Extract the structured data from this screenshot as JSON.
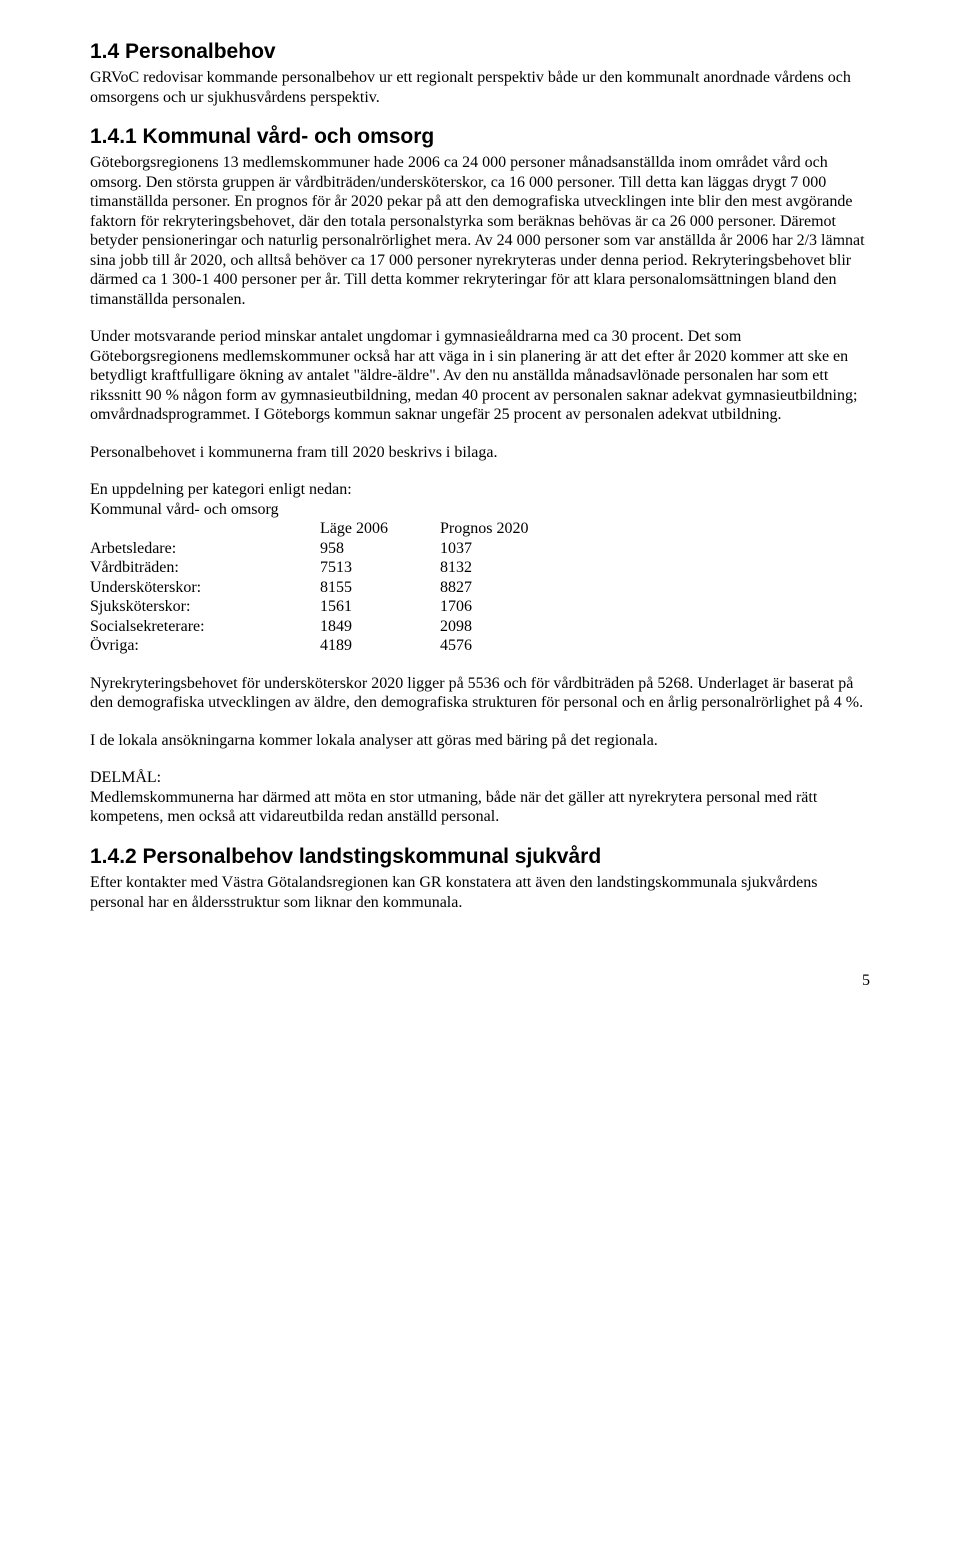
{
  "section": {
    "heading": "1.4 Personalbehov",
    "intro": "GRVoC redovisar kommande personalbehov ur ett regionalt perspektiv både ur den kommunalt anordnade vårdens och omsorgens och ur sjukhusvårdens perspektiv."
  },
  "sub1": {
    "heading": "1.4.1 Kommunal vård- och omsorg",
    "para1": "Göteborgsregionens 13 medlemskommuner hade 2006 ca 24 000 personer månadsanställda inom området vård och omsorg. Den största gruppen är vårdbiträden/undersköterskor, ca 16 000 personer. Till detta kan läggas drygt 7 000 timanställda personer. En prognos för år 2020 pekar på att den demografiska utvecklingen inte blir den mest avgörande faktorn för rekryteringsbehovet, där den totala personalstyrka som beräknas behövas är ca 26 000 personer. Däremot betyder pensioneringar och naturlig personalrörlighet mera. Av 24 000 personer som var anställda år 2006 har 2/3 lämnat sina jobb till år 2020, och alltså behöver ca 17 000 personer nyrekryteras under denna period. Rekryteringsbehovet blir därmed ca 1 300-1 400 personer per år. Till detta kommer rekryteringar för att klara personalomsättningen bland den timanställda personalen.",
    "para2": "Under motsvarande period minskar antalet ungdomar i gymnasieåldrarna med ca 30 procent. Det som Göteborgsregionens medlemskommuner också har att väga in i sin planering är att det efter år 2020 kommer att ske en betydligt kraftfulligare ökning av antalet \"äldre-äldre\". Av den nu anställda månadsavlönade personalen har som ett rikssnitt 90 % någon form av gymnasieutbildning, medan 40 procent av personalen saknar adekvat gymnasieutbildning; omvårdnadsprogrammet. I Göteborgs kommun saknar ungefär 25 procent av personalen adekvat utbildning.",
    "para3": "Personalbehovet i kommunerna fram till 2020 beskrivs i bilaga.",
    "table_intro_line1": "En uppdelning per kategori enligt nedan:",
    "table_intro_line2": "Kommunal vård- och omsorg",
    "table": {
      "col_headers": [
        "Läge 2006",
        "Prognos 2020"
      ],
      "rows": [
        {
          "label": "Arbetsledare:",
          "v1": "958",
          "v2": "1037"
        },
        {
          "label": "Vårdbiträden:",
          "v1": "7513",
          "v2": "8132"
        },
        {
          "label": "Undersköterskor:",
          "v1": "8155",
          "v2": "8827"
        },
        {
          "label": "Sjuksköterskor:",
          "v1": "1561",
          "v2": "1706"
        },
        {
          "label": "Socialsekreterare:",
          "v1": "1849",
          "v2": "2098"
        },
        {
          "label": "Övriga:",
          "v1": "4189",
          "v2": "4576"
        }
      ]
    },
    "para4": "Nyrekryteringsbehovet för undersköterskor 2020 ligger på 5536 och för vårdbiträden på 5268. Underlaget är baserat på den demografiska utvecklingen av äldre, den demografiska strukturen för personal och en årlig personalrörlighet på 4 %.",
    "para5": "I de lokala ansökningarna kommer lokala analyser att göras med bäring på det regionala.",
    "delmal_label": "DELMÅL:",
    "delmal_text": "Medlemskommunerna har därmed att möta en stor utmaning, både när det gäller att nyrekrytera personal med rätt kompetens, men också att vidareutbilda redan anställd personal."
  },
  "sub2": {
    "heading": "1.4.2 Personalbehov landstingskommunal sjukvård",
    "para": "Efter kontakter med Västra Götalandsregionen kan GR konstatera att även den landstingskommunala sjukvårdens personal har en åldersstruktur som liknar den kommunala."
  },
  "page_number": "5"
}
